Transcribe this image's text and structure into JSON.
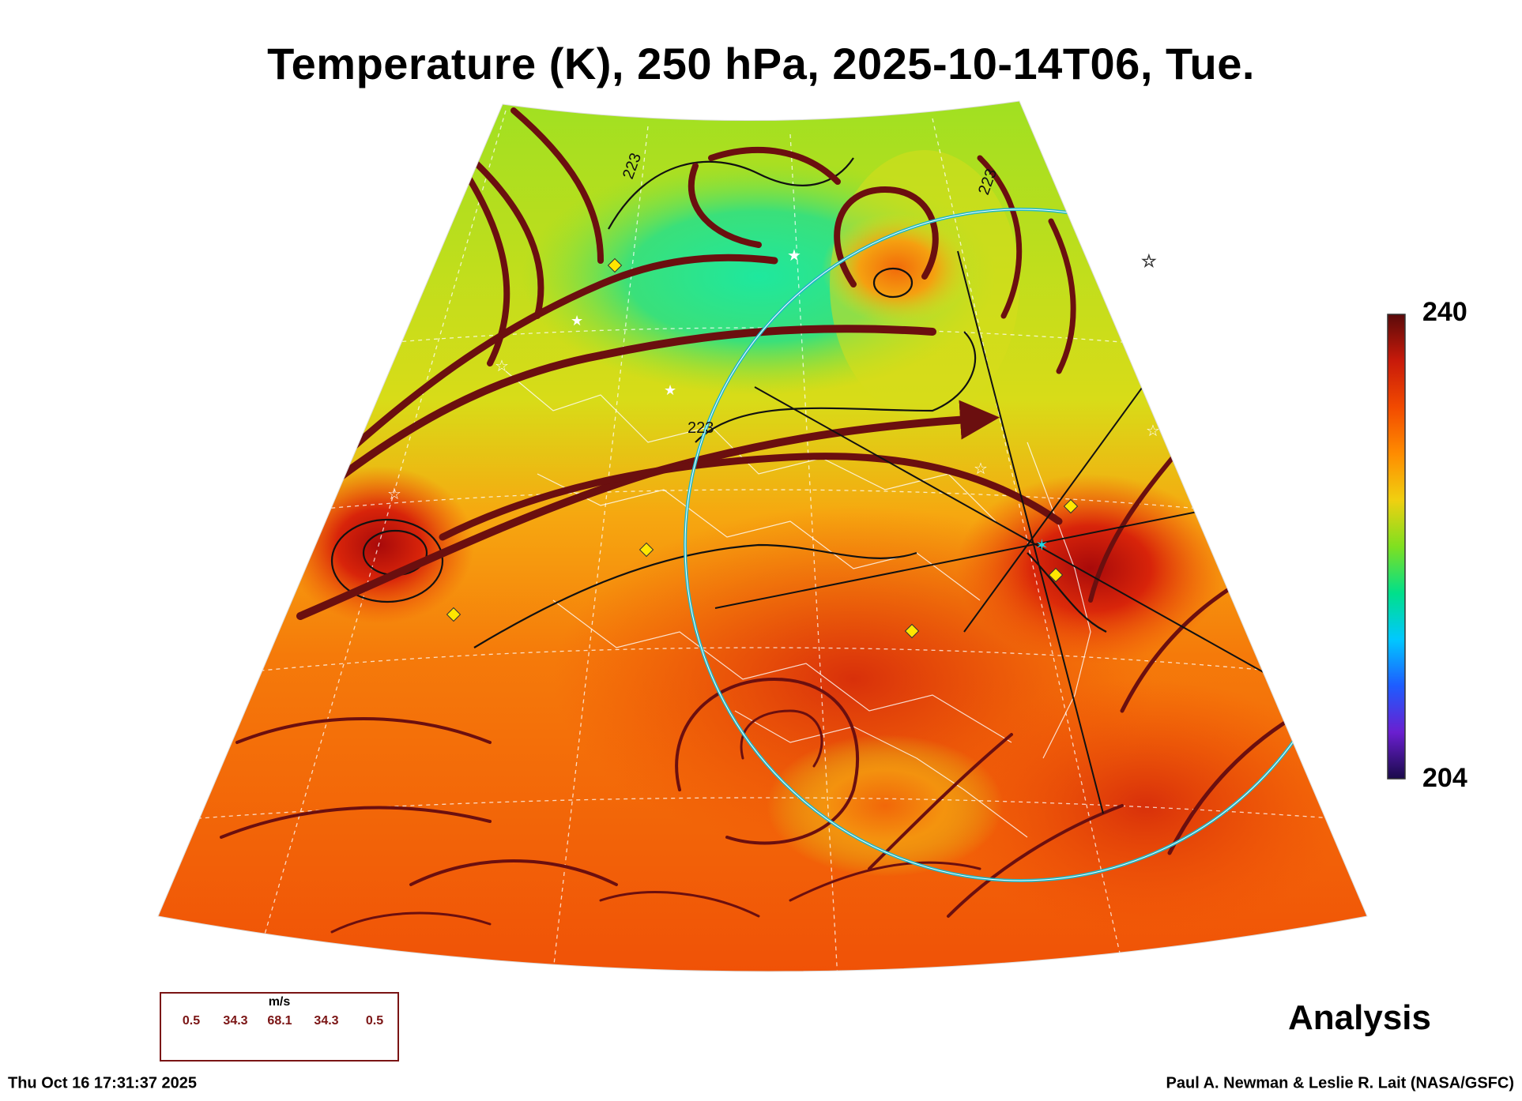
{
  "title": "Temperature (K), 250 hPa, 2025-10-14T06, Tue.",
  "colorbar": {
    "max_label": "240",
    "min_label": "204",
    "colors": [
      "#1a0a4a",
      "#6a1fd0",
      "#1e5cff",
      "#00c8ff",
      "#00e08a",
      "#7fe020",
      "#f0d010",
      "#ff8c00",
      "#f24a00",
      "#c81a0a",
      "#5a0a0a"
    ]
  },
  "contour_labels": [
    "223",
    "223",
    "223"
  ],
  "overlay_label": "Analysis",
  "wind_legend": {
    "unit": "m/s",
    "values": [
      "0.5",
      "34.3",
      "68.1",
      "34.3",
      "0.5"
    ]
  },
  "footer": {
    "timestamp": "Thu Oct 16 17:31:37 2025",
    "credit": "Paul A. Newman & Leslie R. Lait (NASA/GSFC)"
  },
  "colors": {
    "streamline": "#6b0f0f",
    "ring": "#1fb8c8",
    "marker_yellow": "#ffe600",
    "legend_accent": "#7a1414"
  }
}
